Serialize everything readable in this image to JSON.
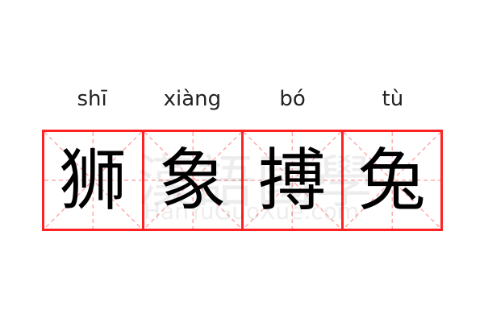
{
  "entries": [
    {
      "pinyin": "shī",
      "char": "狮"
    },
    {
      "pinyin": "xiàng",
      "char": "象"
    },
    {
      "pinyin": "bó",
      "char": "搏"
    },
    {
      "pinyin": "tù",
      "char": "兔"
    }
  ],
  "watermark": {
    "chinese": "漢語國學",
    "latin": "HanYuGuoXue.com"
  },
  "colors": {
    "grid_border": "#ff2222",
    "guide_lines": "#ffaaaa",
    "text": "#000000"
  }
}
